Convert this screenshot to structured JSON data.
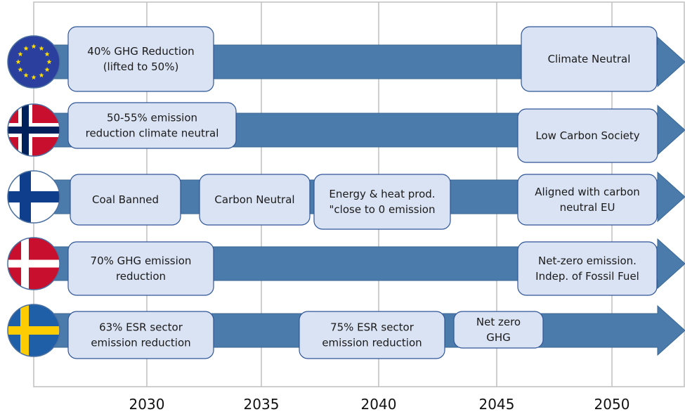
{
  "axis": {
    "labels": [
      "2030",
      "2035",
      "2040",
      "2045",
      "2050"
    ]
  },
  "rows": [
    {
      "boxes": [
        {
          "lines": [
            "40% GHG Reduction",
            "(lifted to 50%)"
          ]
        },
        {
          "lines": [
            "Climate Neutral"
          ]
        }
      ]
    },
    {
      "boxes": [
        {
          "lines": [
            "50-55% emission",
            "reduction climate neutral"
          ]
        },
        {
          "lines": [
            "Low Carbon Society"
          ]
        }
      ]
    },
    {
      "boxes": [
        {
          "lines": [
            "Coal Banned"
          ]
        },
        {
          "lines": [
            "Carbon Neutral"
          ]
        },
        {
          "lines": [
            "Energy & heat prod.",
            "\"close to 0 emission"
          ]
        },
        {
          "lines": [
            "Aligned with carbon",
            "neutral EU"
          ]
        }
      ]
    },
    {
      "boxes": [
        {
          "lines": [
            "70% GHG emission",
            "reduction"
          ]
        },
        {
          "lines": [
            "Net-zero emission.",
            "Indep. of Fossil Fuel"
          ]
        }
      ]
    },
    {
      "boxes": [
        {
          "lines": [
            "63% ESR sector",
            "emission reduction"
          ]
        },
        {
          "lines": [
            "75% ESR sector",
            "emission reduction"
          ]
        },
        {
          "lines": [
            "Net zero",
            "GHG"
          ]
        }
      ]
    }
  ]
}
